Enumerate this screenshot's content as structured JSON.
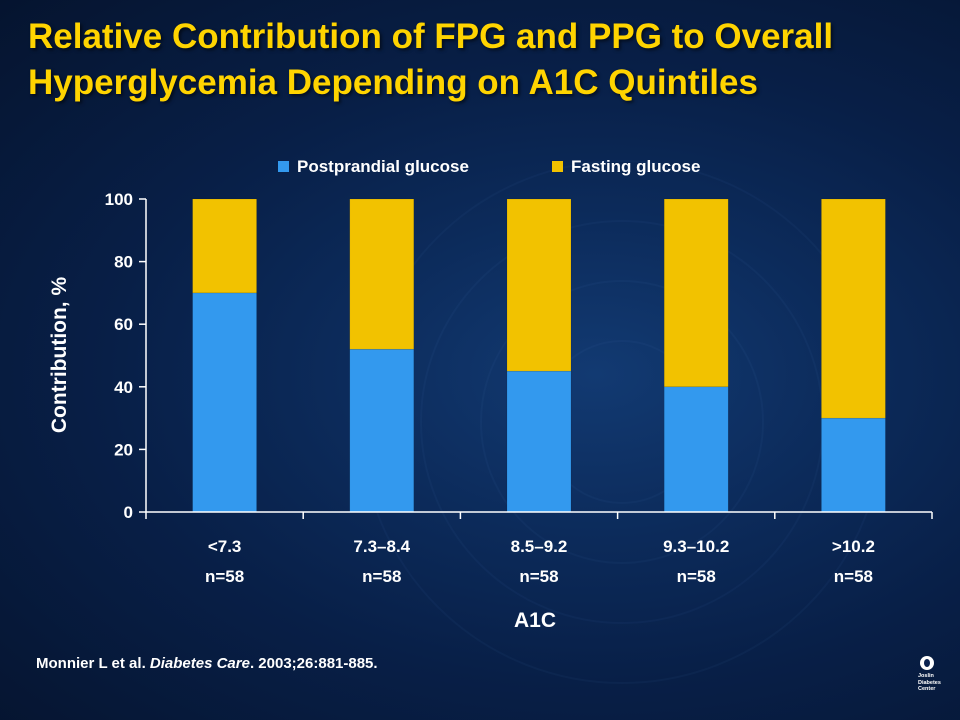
{
  "slide": {
    "title_line1": "Relative Contribution of FPG and PPG to Overall",
    "title_line2": "Hyperglycemia Depending on A1C Quintiles",
    "citation_authors": "Monnier L et al. ",
    "citation_journal": "Diabetes Care",
    "citation_details": ". 2003;26:881-885.",
    "logo_text": [
      "Joslin",
      "Diabetes",
      "Center"
    ]
  },
  "colors": {
    "title": "#ffd400",
    "postprandial": "#3399ee",
    "fasting": "#f2c200",
    "axis": "#ffffff"
  },
  "chart_data": {
    "type": "bar",
    "stacked": true,
    "categories": [
      "<7.3",
      "7.3–8.4",
      "8.5–9.2",
      "9.3–10.2",
      ">10.2"
    ],
    "category_sublabels": [
      "n=58",
      "n=58",
      "n=58",
      "n=58",
      "n=58"
    ],
    "series": [
      {
        "name": "Postprandial glucose",
        "values": [
          70,
          52,
          45,
          40,
          30
        ],
        "color": "#3399ee"
      },
      {
        "name": "Fasting glucose",
        "values": [
          30,
          48,
          55,
          60,
          70
        ],
        "color": "#f2c200"
      }
    ],
    "xlabel": "A1C",
    "ylabel": "Contribution, %",
    "ylim": [
      0,
      100
    ],
    "yticks": [
      0,
      20,
      40,
      60,
      80,
      100
    ],
    "grid": false,
    "legend": "top"
  }
}
